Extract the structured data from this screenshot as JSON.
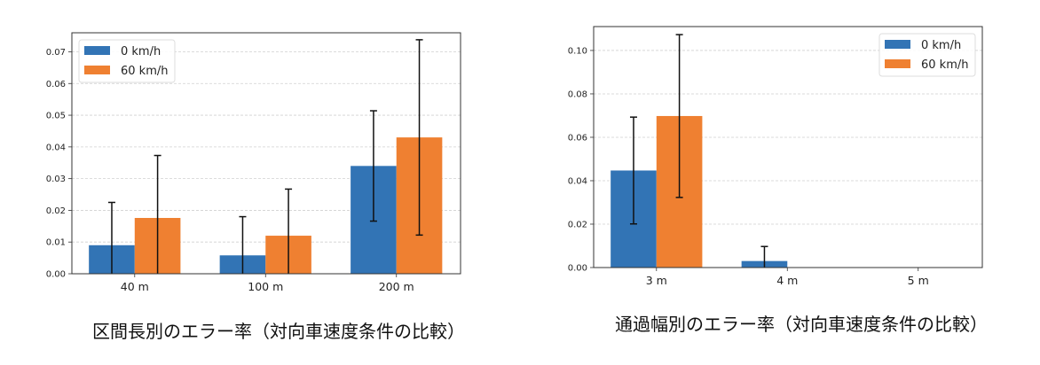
{
  "colors": {
    "series0": "#3274b5",
    "series1": "#ef8031",
    "grid": "#d0d0d0",
    "axis": "#333333"
  },
  "chart_data": [
    {
      "type": "bar",
      "title": "区間長別のエラー率（対向車速度条件の比較）",
      "xlabel": "",
      "ylabel": "",
      "categories": [
        "40 m",
        "100 m",
        "200 m"
      ],
      "series": [
        {
          "name": "0 km/h",
          "values": [
            0.009,
            0.0058,
            0.034
          ],
          "errors": [
            0.0135,
            0.0122,
            0.0174
          ]
        },
        {
          "name": "60 km/h",
          "values": [
            0.0176,
            0.012,
            0.043
          ],
          "errors": [
            0.0197,
            0.0147,
            0.0308
          ]
        }
      ],
      "ylim": [
        0,
        0.076
      ],
      "yticks": [
        "0.00",
        "0.01",
        "0.02",
        "0.03",
        "0.04",
        "0.05",
        "0.06",
        "0.07"
      ],
      "grid": "y-dashed",
      "legend": "top-left"
    },
    {
      "type": "bar",
      "title": "通過幅別のエラー率（対向車速度条件の比較）",
      "xlabel": "",
      "ylabel": "",
      "categories": [
        "3 m",
        "4 m",
        "5 m"
      ],
      "series": [
        {
          "name": "0 km/h",
          "values": [
            0.0447,
            0.003,
            0
          ],
          "errors": [
            0.0246,
            0.0067,
            0
          ]
        },
        {
          "name": "60 km/h",
          "values": [
            0.0698,
            0,
            0
          ],
          "errors": [
            0.0375,
            0,
            0
          ]
        }
      ],
      "ylim": [
        0,
        0.111
      ],
      "yticks": [
        "0.00",
        "0.02",
        "0.04",
        "0.06",
        "0.08",
        "0.10"
      ],
      "grid": "y-dashed",
      "legend": "top-right"
    }
  ]
}
